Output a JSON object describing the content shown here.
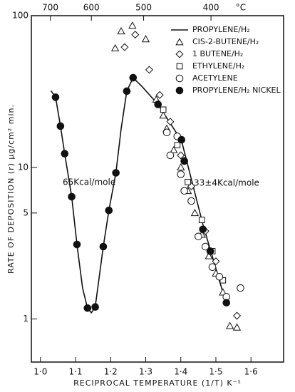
{
  "chart_data": {
    "type": "scatter",
    "log_y": true,
    "y_label": "RATE OF DEPOSITION (r) μg/cm² min.",
    "x_label": "RECIPROCAL TEMPERATURE (1/T) K⁻¹",
    "x2_label": "°C",
    "annotations": [
      "65Kcal/mole",
      "33±4Kcal/mole"
    ],
    "xlim": [
      0.974,
      1.693
    ],
    "ylim": [
      0.52,
      100
    ],
    "xticks": [
      {
        "value": 1.0,
        "label": "1·0"
      },
      {
        "value": 1.1,
        "label": "1·1"
      },
      {
        "value": 1.2,
        "label": "1·2"
      },
      {
        "value": 1.3,
        "label": "1·3"
      },
      {
        "value": 1.4,
        "label": "1·4"
      },
      {
        "value": 1.5,
        "label": "1·5"
      },
      {
        "value": 1.6,
        "label": "1·6"
      }
    ],
    "x2ticks": [
      {
        "value": 1.028,
        "label": "700"
      },
      {
        "value": 1.145,
        "label": "600"
      },
      {
        "value": 1.294,
        "label": "500"
      },
      {
        "value": 1.486,
        "label": "400"
      }
    ],
    "yticks": [
      1,
      5,
      10,
      100
    ],
    "series": [
      {
        "name": "PROPYLENE/H₂",
        "marker": "line",
        "color": "#111",
        "x": [
          1.03,
          1.043,
          1.057,
          1.069,
          1.089,
          1.104,
          1.12,
          1.134,
          1.145,
          1.156,
          1.179,
          1.195,
          1.215,
          1.23,
          1.246,
          1.264,
          1.29,
          1.335,
          1.402,
          1.463,
          1.53
        ],
        "values": [
          32,
          29,
          18.7,
          12.3,
          6.4,
          3.1,
          1.6,
          1.18,
          1.1,
          1.2,
          3.0,
          5.2,
          9.2,
          18,
          31.8,
          39,
          34,
          26,
          15,
          4.2,
          1.25
        ]
      },
      {
        "name": "CIS-2-BUTENE/H₂",
        "marker": "triangle",
        "color": "#111",
        "x": [
          1.213,
          1.23,
          1.262,
          1.3,
          1.33,
          1.35,
          1.36,
          1.38,
          1.4,
          1.42,
          1.44,
          1.46,
          1.48,
          1.5,
          1.52,
          1.54,
          1.56
        ],
        "values": [
          61,
          79,
          86,
          70,
          28,
          22,
          18,
          13,
          10,
          7,
          5,
          3.6,
          2.6,
          2.0,
          1.5,
          0.9,
          0.88
        ]
      },
      {
        "name": "1 BUTENE/H₂",
        "marker": "diamond",
        "color": "#111",
        "x": [
          1.24,
          1.27,
          1.31,
          1.34,
          1.37,
          1.4,
          1.43,
          1.47,
          1.5,
          1.56
        ],
        "values": [
          62,
          75,
          44,
          30,
          20,
          12,
          7.5,
          3.8,
          2.4,
          1.05
        ]
      },
      {
        "name": "ETHYLENE/H₂",
        "marker": "square",
        "color": "#111",
        "x": [
          1.35,
          1.39,
          1.42,
          1.46,
          1.49,
          1.52
        ],
        "values": [
          24,
          14,
          8,
          4.5,
          2.8,
          1.8
        ]
      },
      {
        "name": "ACETYLENE",
        "marker": "circle-open",
        "color": "#111",
        "x": [
          1.36,
          1.37,
          1.39,
          1.4,
          1.41,
          1.43,
          1.45,
          1.47,
          1.49,
          1.51,
          1.53,
          1.57
        ],
        "values": [
          17,
          12,
          16,
          9,
          7,
          6,
          3.5,
          3.0,
          2.2,
          1.9,
          1.4,
          1.6
        ]
      },
      {
        "name": "PROPYLENE/H₂ NICKEL",
        "marker": "circle-filled",
        "color": "#111",
        "x": [
          1.043,
          1.057,
          1.069,
          1.089,
          1.104,
          1.134,
          1.156,
          1.179,
          1.195,
          1.215,
          1.246,
          1.264,
          1.335,
          1.402,
          1.41,
          1.463,
          1.484,
          1.53
        ],
        "values": [
          29,
          18.7,
          12.3,
          6.4,
          3.1,
          1.18,
          1.2,
          3.0,
          5.2,
          9.2,
          31.8,
          39,
          26,
          15.2,
          11,
          3.9,
          2.8,
          1.28
        ]
      }
    ]
  }
}
